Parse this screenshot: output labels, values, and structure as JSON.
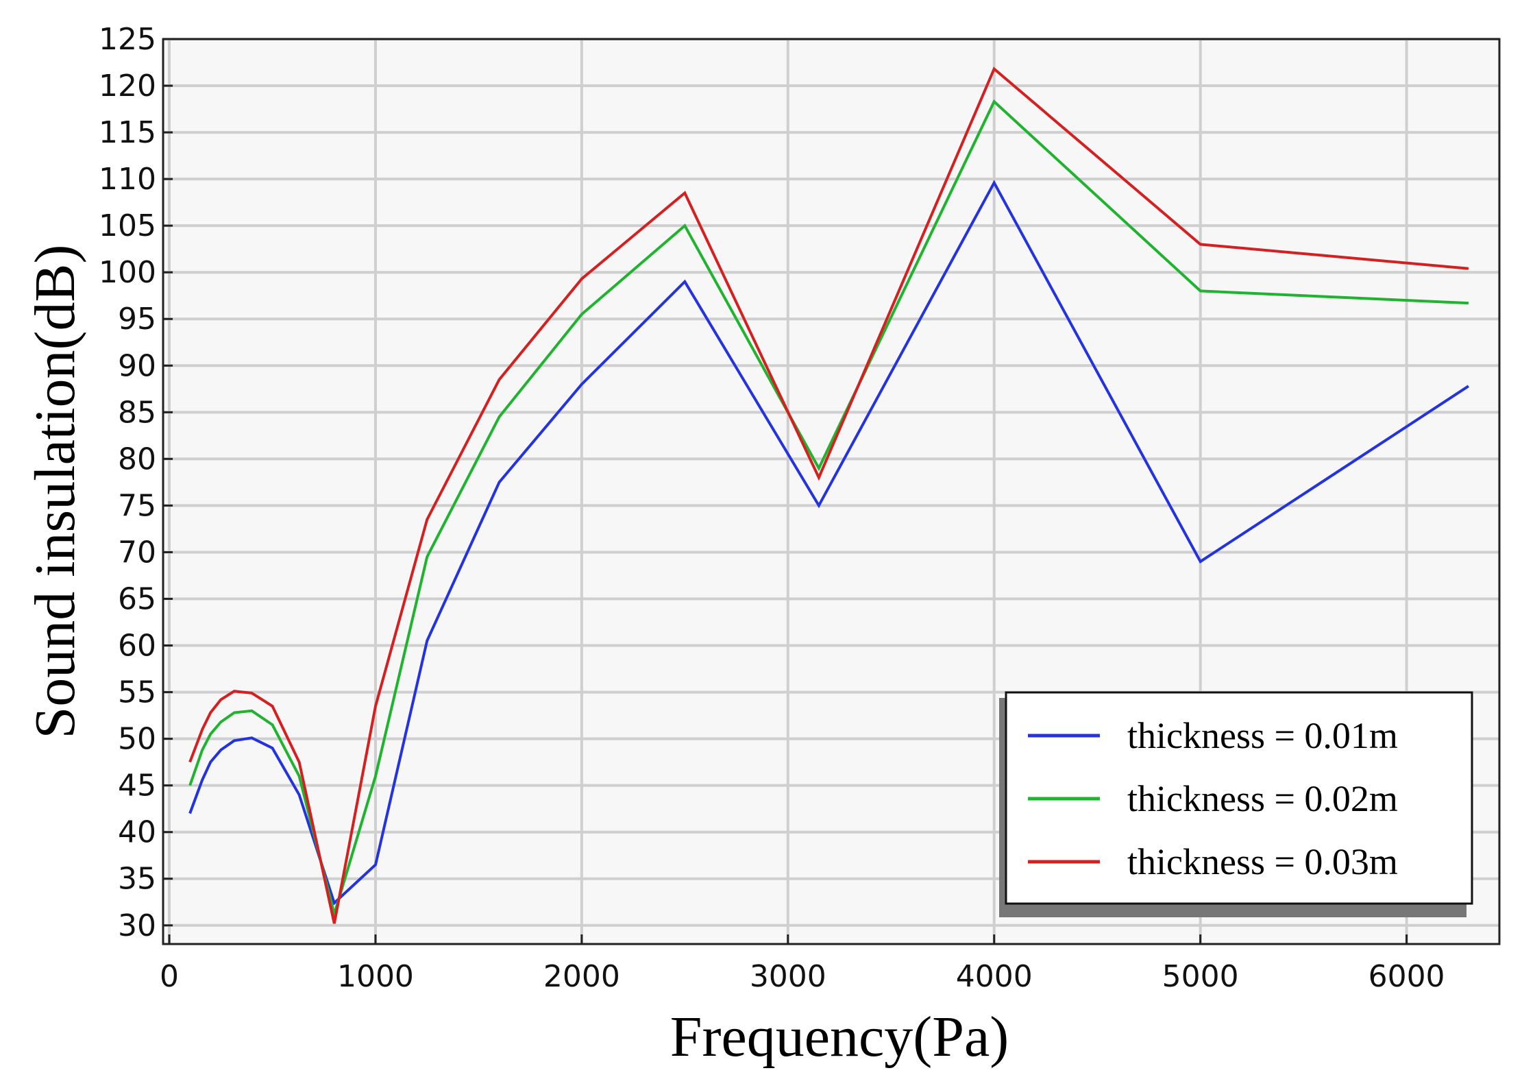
{
  "chart_data": {
    "type": "line",
    "xlabel": "Frequency(Pa)",
    "ylabel": "Sound insulation(dB)",
    "xlim": [
      -30,
      6450
    ],
    "ylim": [
      28,
      125
    ],
    "xticks": [
      0,
      1000,
      2000,
      3000,
      4000,
      5000,
      6000
    ],
    "yticks": [
      30,
      35,
      40,
      45,
      50,
      55,
      60,
      65,
      70,
      75,
      80,
      85,
      90,
      95,
      100,
      105,
      110,
      115,
      120,
      125
    ],
    "grid": true,
    "legend_position": "bottom-right",
    "x": [
      100,
      160,
      200,
      250,
      315,
      400,
      500,
      630,
      800,
      1000,
      1250,
      1600,
      2000,
      2500,
      3150,
      4000,
      5000,
      6300
    ],
    "series": [
      {
        "name": "thickness = 0.01m",
        "color": "#2433e0",
        "values": [
          42.0,
          45.6,
          47.5,
          48.8,
          49.8,
          50.1,
          49.0,
          44.0,
          32.4,
          36.5,
          60.5,
          77.5,
          88.0,
          99.0,
          75.0,
          109.6,
          69.0,
          87.8
        ]
      },
      {
        "name": "thickness = 0.02m",
        "color": "#1fb32f",
        "values": [
          45.0,
          48.8,
          50.5,
          51.8,
          52.8,
          53.0,
          51.5,
          46.0,
          31.2,
          46.0,
          69.5,
          84.5,
          95.5,
          105.0,
          79.0,
          118.3,
          98.0,
          96.7
        ]
      },
      {
        "name": "thickness = 0.03m",
        "color": "#d42020",
        "values": [
          47.5,
          51.0,
          52.8,
          54.2,
          55.1,
          54.9,
          53.5,
          47.5,
          30.2,
          53.5,
          73.5,
          88.5,
          99.3,
          108.5,
          78.0,
          121.8,
          103.0,
          100.4
        ]
      }
    ]
  }
}
